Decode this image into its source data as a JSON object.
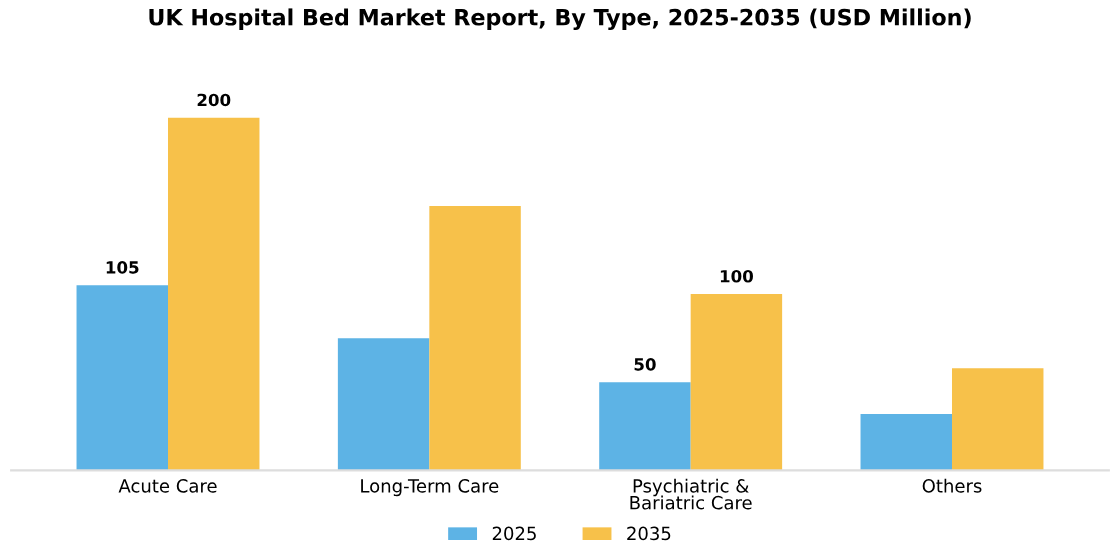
{
  "chart_data": {
    "type": "bar",
    "title": "UK Hospital Bed Market Report, By Type, 2025-2035 (USD Million)",
    "categories": [
      "Acute Care",
      "Long-Term Care",
      "Psychiatric &\nBariatric Care",
      "Others"
    ],
    "series": [
      {
        "name": "2025",
        "color": "#5db3e5",
        "values": [
          105,
          75,
          50,
          32
        ],
        "value_labels": [
          "105",
          null,
          "50",
          null
        ]
      },
      {
        "name": "2035",
        "color": "#f7c14a",
        "values": [
          200,
          150,
          100,
          58
        ],
        "value_labels": [
          "200",
          null,
          "100",
          null
        ]
      }
    ],
    "legend": "bottom",
    "grid": false,
    "tick_labels": "x"
  }
}
